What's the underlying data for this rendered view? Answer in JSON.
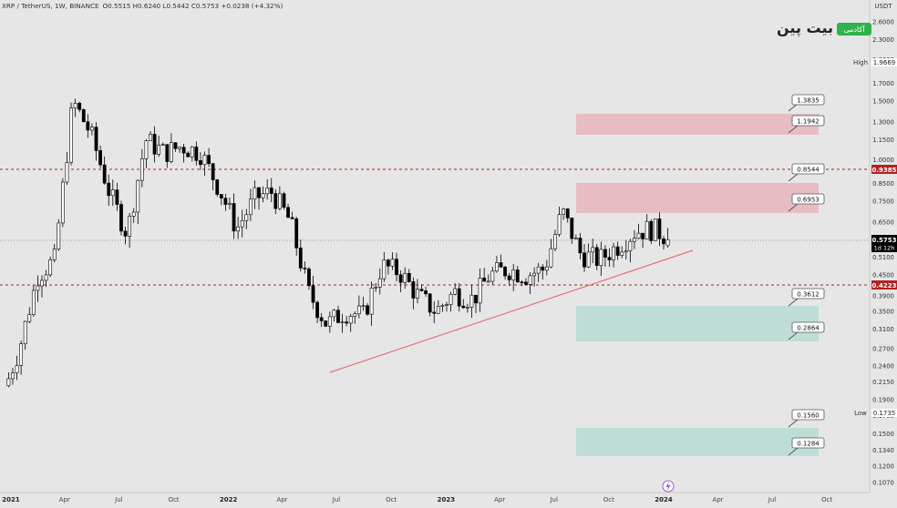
{
  "header": {
    "symbol_line": "XRP / TetherUS, 1W, BINANCE",
    "ohlc": "O0.5515  H0.6240  L0.5442  C0.5753  +0.0238 (+4.32%)"
  },
  "watermark": {
    "brand": "بیت پین",
    "badge": "آکادمی"
  },
  "colors": {
    "background": "#e6e6e6",
    "candle_body": "#000000",
    "candle_up_body": "#ffffff",
    "trendline": "#e57373",
    "red_zone": "#e8b4bc",
    "green_zone": "#b9dcd5",
    "dashed_line": "#b22222",
    "current_price_tag": "#000000",
    "level_tag": "#b22222"
  },
  "axis": {
    "currency": "USDT",
    "high_label": "High",
    "high_value": "1.9669",
    "low_label": "Low",
    "low_value": "0.1735",
    "dashed_upper": "0.9385",
    "dashed_lower": "0.4223",
    "current_price": "0.5753",
    "countdown": "1d 12h"
  },
  "chart_data": {
    "type": "candlestick",
    "title": "XRP / TetherUS, 1W, BINANCE",
    "y_scale": "log",
    "y_ticks": [
      "2.6000",
      "2.3000",
      "2.0000",
      "1.7000",
      "1.5000",
      "1.3000",
      "1.1500",
      "1.0000",
      "0.8500",
      "0.7500",
      "0.6500",
      "0.5700",
      "0.5100",
      "0.4500",
      "0.3900",
      "0.3500",
      "0.3100",
      "0.2700",
      "0.2400",
      "0.2150",
      "0.1900",
      "0.1700",
      "0.1500",
      "0.1340",
      "0.1200",
      "0.1070"
    ],
    "x_ticks": [
      "2021",
      "Apr",
      "Jul",
      "Oct",
      "2022",
      "Apr",
      "Jul",
      "Oct",
      "2023",
      "Apr",
      "Jul",
      "Oct",
      "2024",
      "Apr",
      "Jul",
      "Oct"
    ],
    "ylim": [
      0.1,
      2.8
    ],
    "last_ohlc": {
      "open": 0.5515,
      "high": 0.624,
      "low": 0.5442,
      "close": 0.5753
    },
    "horizontal_levels": [
      0.9385,
      0.4223
    ],
    "level_labels": [
      "1.3835",
      "1.1942",
      "0.8544",
      "0.6953",
      "0.3612",
      "0.2864",
      "0.1560",
      "0.1284"
    ],
    "zones": [
      {
        "kind": "resistance",
        "top": 1.3835,
        "bottom": 1.1942
      },
      {
        "kind": "resistance",
        "top": 0.8544,
        "bottom": 0.6953
      },
      {
        "kind": "support",
        "top": 0.3612,
        "bottom": 0.2864
      },
      {
        "kind": "support",
        "top": 0.156,
        "bottom": 0.1284
      }
    ],
    "trendline": {
      "from": {
        "date": "2022-06",
        "price": 0.2304
      },
      "to": {
        "date": "2024-03",
        "price": 0.5371
      }
    },
    "weekly_close_path": [
      {
        "date": "2020-12-28",
        "close": 0.22
      },
      {
        "date": "2021-01",
        "close": 0.27
      },
      {
        "date": "2021-02",
        "close": 0.45
      },
      {
        "date": "2021-03",
        "close": 0.5
      },
      {
        "date": "2021-04",
        "close": 1.5
      },
      {
        "date": "2021-05",
        "close": 1.2
      },
      {
        "date": "2021-06",
        "close": 0.8
      },
      {
        "date": "2021-07",
        "close": 0.6
      },
      {
        "date": "2021-08",
        "close": 1.15
      },
      {
        "date": "2021-09",
        "close": 1.05
      },
      {
        "date": "2021-10",
        "close": 1.1
      },
      {
        "date": "2021-11",
        "close": 1.05
      },
      {
        "date": "2021-12",
        "close": 0.83
      },
      {
        "date": "2022-01",
        "close": 0.62
      },
      {
        "date": "2022-02",
        "close": 0.77
      },
      {
        "date": "2022-03",
        "close": 0.8
      },
      {
        "date": "2022-04",
        "close": 0.65
      },
      {
        "date": "2022-05",
        "close": 0.4
      },
      {
        "date": "2022-06",
        "close": 0.32
      },
      {
        "date": "2022-07",
        "close": 0.35
      },
      {
        "date": "2022-08",
        "close": 0.34
      },
      {
        "date": "2022-09",
        "close": 0.48
      },
      {
        "date": "2022-10",
        "close": 0.46
      },
      {
        "date": "2022-11",
        "close": 0.39
      },
      {
        "date": "2022-12",
        "close": 0.35
      },
      {
        "date": "2023-01",
        "close": 0.4
      },
      {
        "date": "2023-02",
        "close": 0.38
      },
      {
        "date": "2023-03",
        "close": 0.45
      },
      {
        "date": "2023-04",
        "close": 0.47
      },
      {
        "date": "2023-05",
        "close": 0.45
      },
      {
        "date": "2023-06",
        "close": 0.47
      },
      {
        "date": "2023-07",
        "close": 0.7
      },
      {
        "date": "2023-08",
        "close": 0.52
      },
      {
        "date": "2023-09",
        "close": 0.5
      },
      {
        "date": "2023-10",
        "close": 0.55
      },
      {
        "date": "2023-11",
        "close": 0.61
      },
      {
        "date": "2023-12",
        "close": 0.62
      },
      {
        "date": "2024-01",
        "close": 0.5753
      }
    ]
  }
}
